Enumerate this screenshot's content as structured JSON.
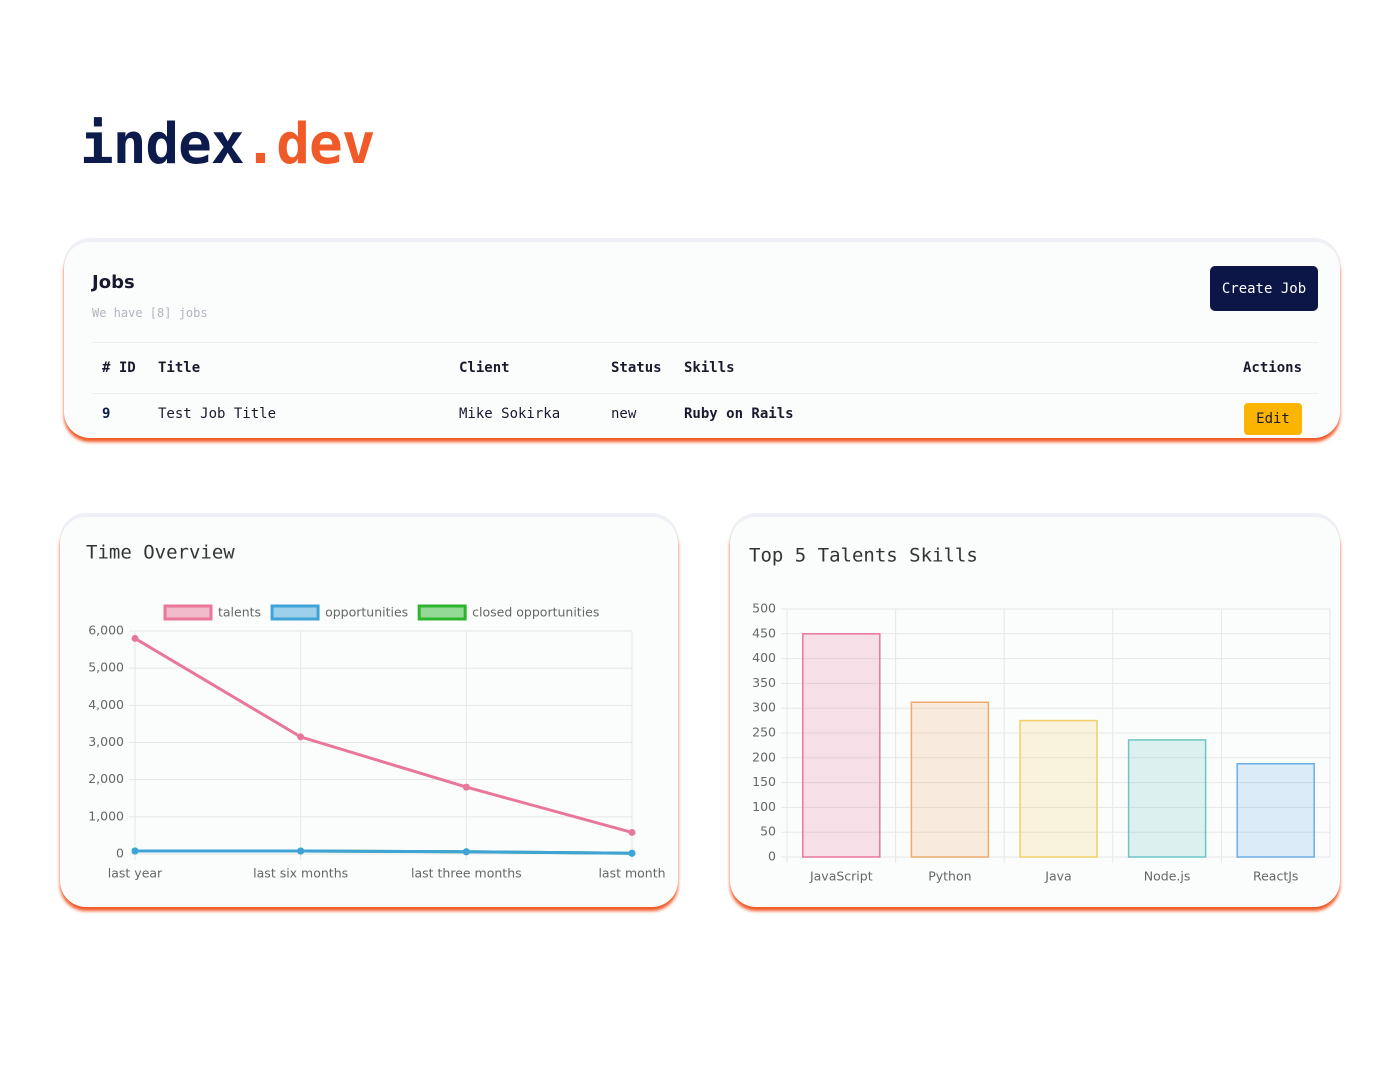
{
  "logo": {
    "name": "index",
    "tld": ".dev"
  },
  "jobs": {
    "title": "Jobs",
    "subtitle": "We have [8] jobs",
    "create_button": "Create Job",
    "table": {
      "columns": [
        "# ID",
        "Title",
        "Client",
        "Status",
        "Skills",
        "Actions"
      ],
      "rows": [
        [
          "9",
          "Test Job Title",
          "Mike Sokirka",
          "new",
          "Ruby on Rails",
          "Edit"
        ]
      ]
    }
  },
  "chart_data": [
    {
      "type": "line",
      "title": "Time Overview",
      "categories": [
        "last year",
        "last six months",
        "last three months",
        "last month"
      ],
      "series": [
        {
          "name": "talents",
          "color": "#e8779a",
          "values": [
            5800,
            3150,
            1800,
            580
          ]
        },
        {
          "name": "opportunities",
          "color": "#3fa3d8",
          "values": [
            80,
            80,
            60,
            20
          ]
        },
        {
          "name": "closed opportunities",
          "color": "#2db52d",
          "values": [
            80,
            80,
            60,
            20
          ]
        }
      ],
      "ylim": [
        0,
        6000
      ],
      "yticks": [
        0,
        {
          "value": 1000,
          "label": "1,000"
        },
        {
          "value": 2000,
          "label": "2,000"
        },
        {
          "value": 3000,
          "label": "3,000"
        },
        {
          "value": 4000,
          "label": "4,000"
        },
        {
          "value": 5000,
          "label": "5,000"
        },
        {
          "value": 6000,
          "label": "6,000"
        }
      ],
      "grid": true,
      "legend": "top"
    },
    {
      "type": "bar",
      "title": "Top 5 Talents Skills",
      "categories": [
        "JavaScript",
        "Python",
        "Java",
        "Node.js",
        "ReactJs"
      ],
      "values": [
        450,
        312,
        275,
        236,
        188
      ],
      "colors": [
        "#e8779a",
        "#efaa6a",
        "#f2cf6a",
        "#6cc5c5",
        "#6aaee6"
      ],
      "ylim": [
        0,
        500
      ],
      "yticks": [
        0,
        50,
        100,
        150,
        200,
        250,
        300,
        350,
        400,
        450,
        500
      ],
      "grid": true
    }
  ]
}
